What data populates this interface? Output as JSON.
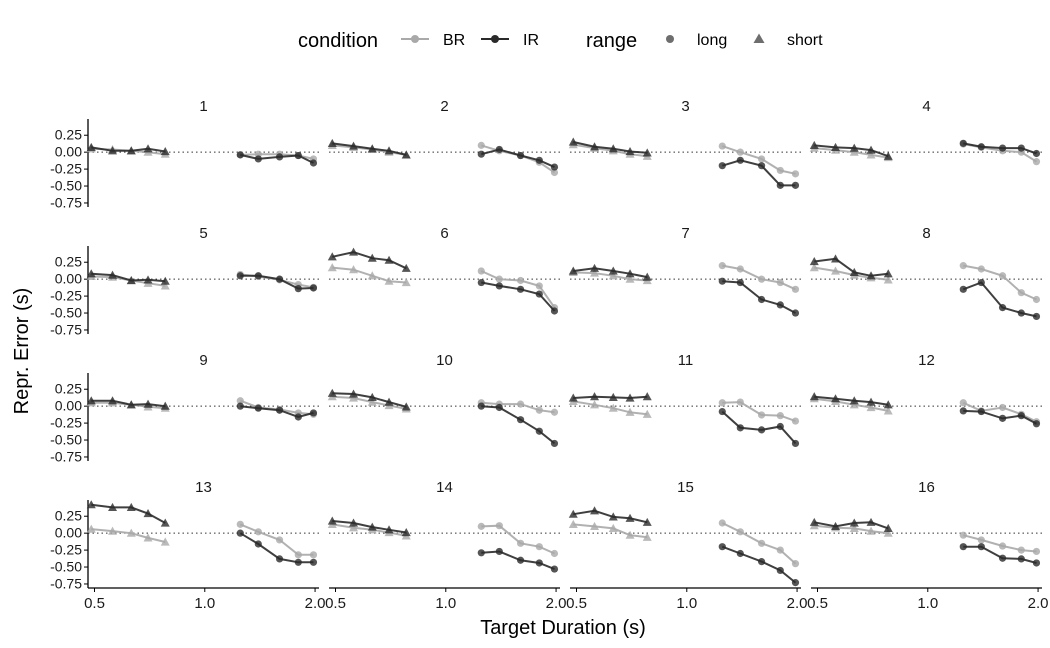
{
  "chart_data": {
    "type": "line",
    "layout": "faceted 4x4 grid of small multiples",
    "xlabel": "Target Duration (s)",
    "ylabel": "Repr. Error (s)",
    "x_ticks": [
      0.5,
      1.0,
      2.0
    ],
    "x_tick_labels": [
      "0.5",
      "1.0",
      "2.0"
    ],
    "x_scale": "log",
    "xlim": [
      0.48,
      2.05
    ],
    "y_ticks": [
      0.25,
      0.0,
      -0.25,
      -0.5,
      -0.75
    ],
    "y_tick_labels": [
      "0.25",
      "0.00",
      "-0.25",
      "-0.50",
      "-0.75"
    ],
    "ylim": [
      -0.78,
      0.46
    ],
    "reference_line": {
      "y": 0,
      "style": "dotted"
    },
    "grid": false,
    "legend": {
      "position": "top",
      "condition_title": "condition",
      "condition_items": [
        {
          "label": "BR",
          "color": "#a9a9a9"
        },
        {
          "label": "IR",
          "color": "#2a2a2a"
        }
      ],
      "range_title": "range",
      "range_items": [
        {
          "label": "long",
          "marker": "circle"
        },
        {
          "label": "short",
          "marker": "triangle"
        }
      ]
    },
    "colors": {
      "BR": "#a9a9a9",
      "IR": "#2a2a2a"
    },
    "short_x": [
      0.49,
      0.56,
      0.63,
      0.7,
      0.78
    ],
    "long_x": [
      1.25,
      1.4,
      1.6,
      1.8,
      1.98
    ],
    "panels": [
      {
        "label": "1",
        "short_BR": [
          0.05,
          0.04,
          0.02,
          0.0,
          -0.03
        ],
        "short_IR": [
          0.07,
          0.02,
          0.02,
          0.05,
          0.01
        ],
        "long_BR": [
          -0.04,
          -0.03,
          -0.03,
          -0.05,
          -0.1
        ],
        "long_IR": [
          -0.04,
          -0.1,
          -0.07,
          -0.05,
          -0.16
        ]
      },
      {
        "label": "2",
        "short_BR": [
          0.1,
          0.07,
          0.04,
          0.0,
          -0.04
        ],
        "short_IR": [
          0.13,
          0.09,
          0.05,
          0.02,
          -0.04
        ],
        "long_BR": [
          0.1,
          0.02,
          -0.05,
          -0.15,
          -0.3
        ],
        "long_IR": [
          -0.03,
          0.04,
          -0.05,
          -0.12,
          -0.22
        ]
      },
      {
        "label": "3",
        "short_BR": [
          0.11,
          0.06,
          0.02,
          -0.03,
          -0.06
        ],
        "short_IR": [
          0.15,
          0.08,
          0.05,
          0.01,
          -0.01
        ],
        "long_BR": [
          0.09,
          0.0,
          -0.1,
          -0.27,
          -0.32
        ],
        "long_IR": [
          -0.2,
          -0.12,
          -0.2,
          -0.49,
          -0.49
        ]
      },
      {
        "label": "4",
        "short_BR": [
          0.06,
          0.03,
          0.0,
          -0.04,
          -0.08
        ],
        "short_IR": [
          0.1,
          0.07,
          0.06,
          0.03,
          -0.06
        ],
        "long_BR": [
          0.12,
          0.07,
          0.02,
          0.0,
          -0.14
        ],
        "long_IR": [
          0.13,
          0.08,
          0.06,
          0.06,
          -0.02
        ]
      },
      {
        "label": "5",
        "short_BR": [
          0.04,
          0.03,
          -0.02,
          -0.06,
          -0.1
        ],
        "short_IR": [
          0.08,
          0.06,
          -0.02,
          -0.01,
          -0.03
        ],
        "long_BR": [
          0.07,
          0.04,
          -0.01,
          -0.08,
          -0.12
        ],
        "long_IR": [
          0.05,
          0.05,
          0.0,
          -0.14,
          -0.13
        ]
      },
      {
        "label": "6",
        "short_BR": [
          0.17,
          0.14,
          0.05,
          -0.03,
          -0.05
        ],
        "short_IR": [
          0.33,
          0.4,
          0.31,
          0.28,
          0.16
        ],
        "long_BR": [
          0.12,
          0.0,
          -0.02,
          -0.1,
          -0.42
        ],
        "long_IR": [
          -0.05,
          -0.1,
          -0.15,
          -0.22,
          -0.47
        ]
      },
      {
        "label": "7",
        "short_BR": [
          0.1,
          0.09,
          0.05,
          0.0,
          -0.02
        ],
        "short_IR": [
          0.12,
          0.16,
          0.12,
          0.08,
          0.03
        ],
        "long_BR": [
          0.2,
          0.15,
          0.0,
          -0.05,
          -0.15
        ],
        "long_IR": [
          -0.03,
          -0.05,
          -0.3,
          -0.38,
          -0.5
        ]
      },
      {
        "label": "8",
        "short_BR": [
          0.17,
          0.12,
          0.06,
          0.02,
          -0.01
        ],
        "short_IR": [
          0.26,
          0.3,
          0.1,
          0.05,
          0.08
        ],
        "long_BR": [
          0.2,
          0.15,
          0.05,
          -0.2,
          -0.3
        ],
        "long_IR": [
          -0.15,
          -0.05,
          -0.42,
          -0.5,
          -0.55
        ]
      },
      {
        "label": "9",
        "short_BR": [
          0.05,
          0.05,
          0.02,
          -0.01,
          -0.03
        ],
        "short_IR": [
          0.08,
          0.08,
          0.02,
          0.03,
          0.0
        ],
        "long_BR": [
          0.08,
          -0.02,
          -0.05,
          -0.1,
          -0.12
        ],
        "long_IR": [
          0.0,
          -0.03,
          -0.06,
          -0.16,
          -0.1
        ]
      },
      {
        "label": "10",
        "short_BR": [
          0.14,
          0.12,
          0.06,
          0.01,
          -0.04
        ],
        "short_IR": [
          0.19,
          0.18,
          0.13,
          0.06,
          -0.01
        ],
        "long_BR": [
          0.05,
          0.03,
          0.03,
          -0.06,
          -0.09
        ],
        "long_IR": [
          0.0,
          -0.02,
          -0.2,
          -0.37,
          -0.55
        ]
      },
      {
        "label": "11",
        "short_BR": [
          0.07,
          0.02,
          -0.03,
          -0.09,
          -0.12
        ],
        "short_IR": [
          0.12,
          0.14,
          0.13,
          0.12,
          0.14
        ],
        "long_BR": [
          0.05,
          0.06,
          -0.13,
          -0.14,
          -0.22
        ],
        "long_IR": [
          -0.08,
          -0.32,
          -0.35,
          -0.3,
          -0.55
        ]
      },
      {
        "label": "12",
        "short_BR": [
          0.11,
          0.07,
          0.02,
          -0.02,
          -0.07
        ],
        "short_IR": [
          0.14,
          0.11,
          0.08,
          0.06,
          0.02
        ],
        "long_BR": [
          0.05,
          -0.07,
          -0.02,
          -0.12,
          -0.23
        ],
        "long_IR": [
          -0.07,
          -0.08,
          -0.18,
          -0.14,
          -0.26
        ]
      },
      {
        "label": "13",
        "short_BR": [
          0.06,
          0.03,
          0.0,
          -0.07,
          -0.13
        ],
        "short_IR": [
          0.42,
          0.38,
          0.38,
          0.29,
          0.15
        ],
        "long_BR": [
          0.13,
          0.02,
          -0.1,
          -0.32,
          -0.32
        ],
        "long_IR": [
          0.0,
          -0.16,
          -0.38,
          -0.43,
          -0.43
        ]
      },
      {
        "label": "14",
        "short_BR": [
          0.13,
          0.08,
          0.05,
          0.01,
          -0.04
        ],
        "short_IR": [
          0.18,
          0.15,
          0.09,
          0.05,
          0.01
        ],
        "long_BR": [
          0.1,
          0.11,
          -0.15,
          -0.2,
          -0.3
        ],
        "long_IR": [
          -0.29,
          -0.27,
          -0.4,
          -0.44,
          -0.53
        ]
      },
      {
        "label": "15",
        "short_BR": [
          0.13,
          0.1,
          0.07,
          -0.03,
          -0.06
        ],
        "short_IR": [
          0.28,
          0.33,
          0.24,
          0.22,
          0.16
        ],
        "long_BR": [
          0.15,
          0.02,
          -0.15,
          -0.25,
          -0.45
        ],
        "long_IR": [
          -0.2,
          -0.3,
          -0.42,
          -0.55,
          -0.73
        ]
      },
      {
        "label": "16",
        "short_BR": [
          0.11,
          0.08,
          0.07,
          0.03,
          0.0
        ],
        "short_IR": [
          0.16,
          0.1,
          0.15,
          0.16,
          0.07
        ],
        "long_BR": [
          -0.03,
          -0.1,
          -0.19,
          -0.25,
          -0.27
        ],
        "long_IR": [
          -0.2,
          -0.2,
          -0.37,
          -0.38,
          -0.44
        ]
      }
    ]
  }
}
